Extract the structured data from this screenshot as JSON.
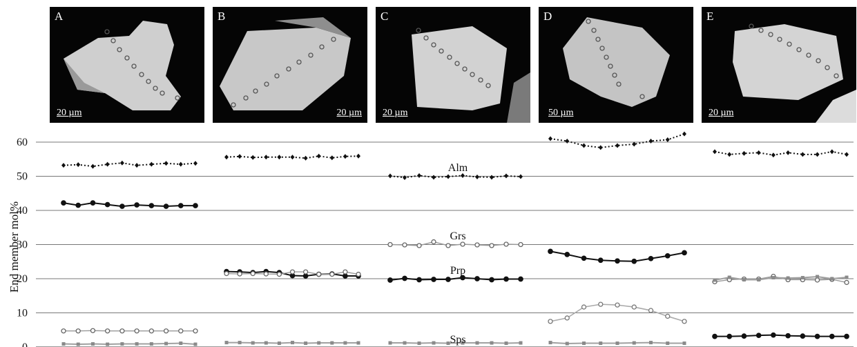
{
  "panels": [
    {
      "label": "A",
      "scale": "20 µm"
    },
    {
      "label": "B",
      "scale": "20 µm"
    },
    {
      "label": "C",
      "scale": "20 µm"
    },
    {
      "label": "D",
      "scale": "50 µm"
    },
    {
      "label": "E",
      "scale": "20 µm"
    }
  ],
  "chart_data": {
    "type": "line",
    "ylabel": "End member mol%",
    "ylim": [
      0,
      60
    ],
    "yticks": [
      0,
      10,
      20,
      30,
      40,
      50,
      60
    ],
    "grid": true,
    "annotations": [
      "Alm",
      "Grs",
      "Prp",
      "Sps"
    ],
    "groups": [
      {
        "panel": "A",
        "series": [
          {
            "style": "dotted-diamond",
            "values": [
              53.2,
              53.4,
              52.9,
              53.5,
              53.9,
              53.2,
              53.5,
              53.8,
              53.5,
              53.8
            ]
          },
          {
            "style": "solid-black",
            "values": [
              42.2,
              41.5,
              42.2,
              41.7,
              41.2,
              41.6,
              41.4,
              41.2,
              41.4,
              41.4
            ]
          },
          {
            "style": "open-circle",
            "values": [
              4.7,
              4.7,
              4.8,
              4.7,
              4.7,
              4.7,
              4.7,
              4.7,
              4.7,
              4.7
            ]
          },
          {
            "style": "gray-square",
            "values": [
              0.9,
              0.8,
              0.9,
              0.8,
              0.9,
              0.9,
              0.9,
              1.0,
              1.1,
              0.8
            ]
          }
        ]
      },
      {
        "panel": "B",
        "series": [
          {
            "style": "dotted-diamond",
            "values": [
              55.6,
              55.8,
              55.5,
              55.6,
              55.6,
              55.6,
              55.3,
              55.9,
              55.4,
              55.8,
              55.9
            ]
          },
          {
            "style": "solid-black",
            "values": [
              22.1,
              22.0,
              21.8,
              22.1,
              21.8,
              20.9,
              20.8,
              21.3,
              21.4,
              20.8,
              20.8
            ]
          },
          {
            "style": "open-circle",
            "values": [
              21.5,
              21.4,
              21.5,
              21.4,
              21.3,
              22.0,
              22.0,
              21.3,
              21.3,
              22.0,
              21.3
            ]
          },
          {
            "style": "gray-square",
            "values": [
              1.3,
              1.3,
              1.2,
              1.2,
              1.1,
              1.3,
              1.1,
              1.2,
              1.2,
              1.2,
              1.2
            ]
          }
        ]
      },
      {
        "panel": "C",
        "series": [
          {
            "style": "dotted-diamond",
            "values": [
              50.1,
              49.6,
              50.2,
              49.7,
              49.9,
              50.2,
              49.8,
              49.7,
              50.1,
              49.9
            ]
          },
          {
            "style": "open-circle",
            "values": [
              30.0,
              29.9,
              29.7,
              30.8,
              29.7,
              30.1,
              29.9,
              29.7,
              30.1,
              30.0
            ]
          },
          {
            "style": "solid-black",
            "values": [
              19.6,
              20.1,
              19.7,
              19.8,
              19.8,
              20.3,
              20.0,
              19.7,
              19.9,
              19.9
            ]
          },
          {
            "style": "gray-square",
            "values": [
              1.2,
              1.2,
              1.1,
              1.2,
              1.1,
              1.2,
              1.2,
              1.2,
              1.1,
              1.2
            ]
          }
        ]
      },
      {
        "panel": "D",
        "series": [
          {
            "style": "dotted-diamond",
            "values": [
              61.0,
              60.3,
              59.0,
              58.4,
              59.0,
              59.4,
              60.3,
              60.7,
              62.4
            ]
          },
          {
            "style": "solid-black",
            "values": [
              28.0,
              27.1,
              26.0,
              25.4,
              25.2,
              25.1,
              25.9,
              26.7,
              27.6
            ]
          },
          {
            "style": "open-circle-gray",
            "values": [
              7.5,
              8.5,
              11.7,
              12.5,
              12.3,
              11.7,
              10.7,
              9.0,
              7.5
            ]
          },
          {
            "style": "gray-square",
            "values": [
              1.3,
              1.0,
              1.1,
              1.1,
              1.1,
              1.2,
              1.3,
              1.1,
              1.1
            ]
          }
        ]
      },
      {
        "panel": "E",
        "series": [
          {
            "style": "dotted-diamond",
            "values": [
              57.2,
              56.4,
              56.7,
              56.9,
              56.2,
              56.9,
              56.4,
              56.4,
              57.2,
              56.4
            ]
          },
          {
            "style": "open-circle",
            "values": [
              19.1,
              19.7,
              19.9,
              19.9,
              20.7,
              19.7,
              19.7,
              19.6,
              19.8,
              18.9
            ]
          },
          {
            "style": "gray-square",
            "values": [
              19.6,
              20.4,
              19.7,
              19.7,
              20.3,
              20.2,
              20.3,
              20.6,
              20.0,
              20.4
            ]
          },
          {
            "style": "solid-black",
            "values": [
              3.1,
              3.1,
              3.2,
              3.4,
              3.5,
              3.3,
              3.2,
              3.1,
              3.1,
              3.1
            ]
          }
        ]
      }
    ]
  }
}
